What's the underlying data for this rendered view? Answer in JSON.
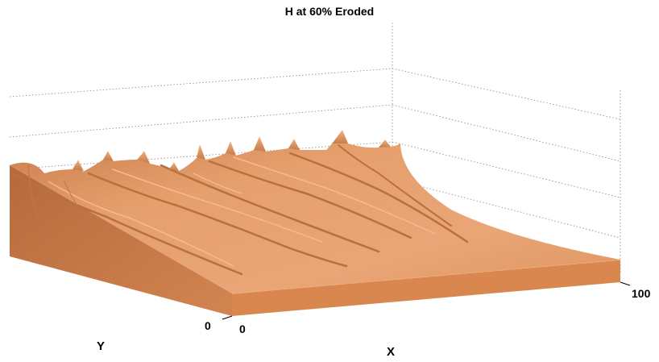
{
  "chart_data": {
    "type": "surface",
    "title": "H at 60% Eroded",
    "xlabel": "X",
    "ylabel": "Y",
    "x_ticks": [
      "0",
      "100"
    ],
    "y_ticks": [
      "0"
    ],
    "grid": true,
    "surface_color": "#e0935f",
    "side_color": "#d9874f",
    "grid_color": "#888888"
  }
}
